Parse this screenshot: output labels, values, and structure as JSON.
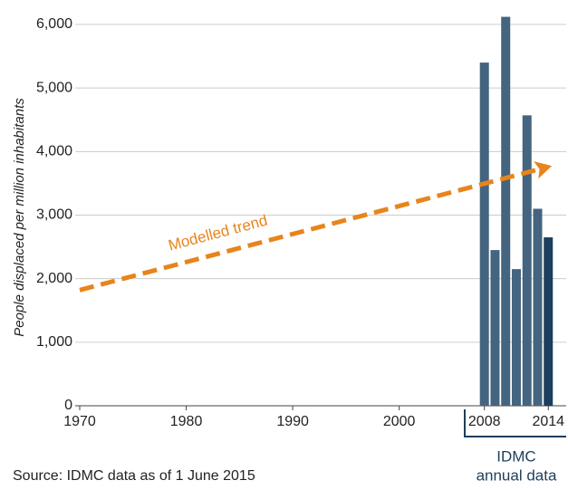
{
  "chart_data": {
    "type": "bar",
    "y_label": "People displaced per million inhabitants",
    "x": [
      2008,
      2009,
      2010,
      2011,
      2012,
      2013,
      2014
    ],
    "values": [
      5400,
      2450,
      6120,
      2150,
      4570,
      3100,
      2650
    ],
    "colors": [
      "#44647f",
      "#44647f",
      "#44647f",
      "#44647f",
      "#44647f",
      "#44647f",
      "#1d3e5c"
    ],
    "trend": {
      "name": "Modelled trend",
      "x": [
        1970,
        2014
      ],
      "values": [
        1820,
        3760
      ],
      "color": "#e8841c"
    },
    "xlim": [
      1970,
      2015
    ],
    "xticks": [
      1970,
      1980,
      1990,
      2000,
      2008,
      2014
    ],
    "ylim": [
      0,
      6000
    ],
    "yticks": [
      0,
      {
        "value": 1000,
        "label": "1,000"
      },
      {
        "value": 2000,
        "label": "2,000"
      },
      {
        "value": 3000,
        "label": "3,000"
      },
      {
        "value": 4000,
        "label": "4,000"
      },
      {
        "value": 5000,
        "label": "5,000"
      },
      {
        "value": 6000,
        "label": "6,000"
      }
    ],
    "grid": true,
    "bracket_label": [
      "IDMC",
      "annual data"
    ],
    "source": "Source: IDMC data as of 1 June 2015"
  }
}
